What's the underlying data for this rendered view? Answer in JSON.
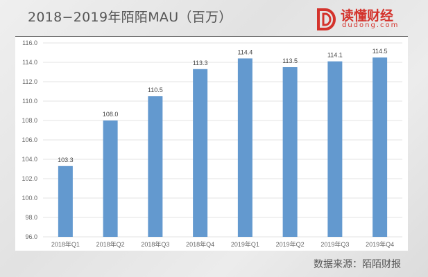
{
  "header": {
    "title": "2018−2019年陌陌MAU（百万）"
  },
  "logo": {
    "name": "读懂财经",
    "url": "dudong.com",
    "color": "#d4332c"
  },
  "footer": {
    "source": "数据来源：陌陌财报"
  },
  "chart_data": {
    "type": "bar",
    "title": "2018−2019年陌陌MAU（百万）",
    "categories": [
      "2018年Q1",
      "2018年Q2",
      "2018年Q3",
      "2018年Q4",
      "2019年Q1",
      "2019年Q2",
      "2019年Q3",
      "2019年Q4"
    ],
    "values": [
      103.3,
      108.0,
      110.5,
      113.3,
      114.4,
      113.5,
      114.1,
      114.5
    ],
    "data_labels": [
      "103.3",
      "108.0",
      "110.5",
      "113.3",
      "114.4",
      "113.5",
      "114.1",
      "114.5"
    ],
    "ylim": [
      96,
      116
    ],
    "yticks": [
      "96.0",
      "98.0",
      "100.0",
      "102.0",
      "104.0",
      "106.0",
      "108.0",
      "110.0",
      "112.0",
      "114.0",
      "116.0"
    ],
    "grid": true,
    "bar_color": "#6399cf",
    "xlabel": "",
    "ylabel": ""
  }
}
